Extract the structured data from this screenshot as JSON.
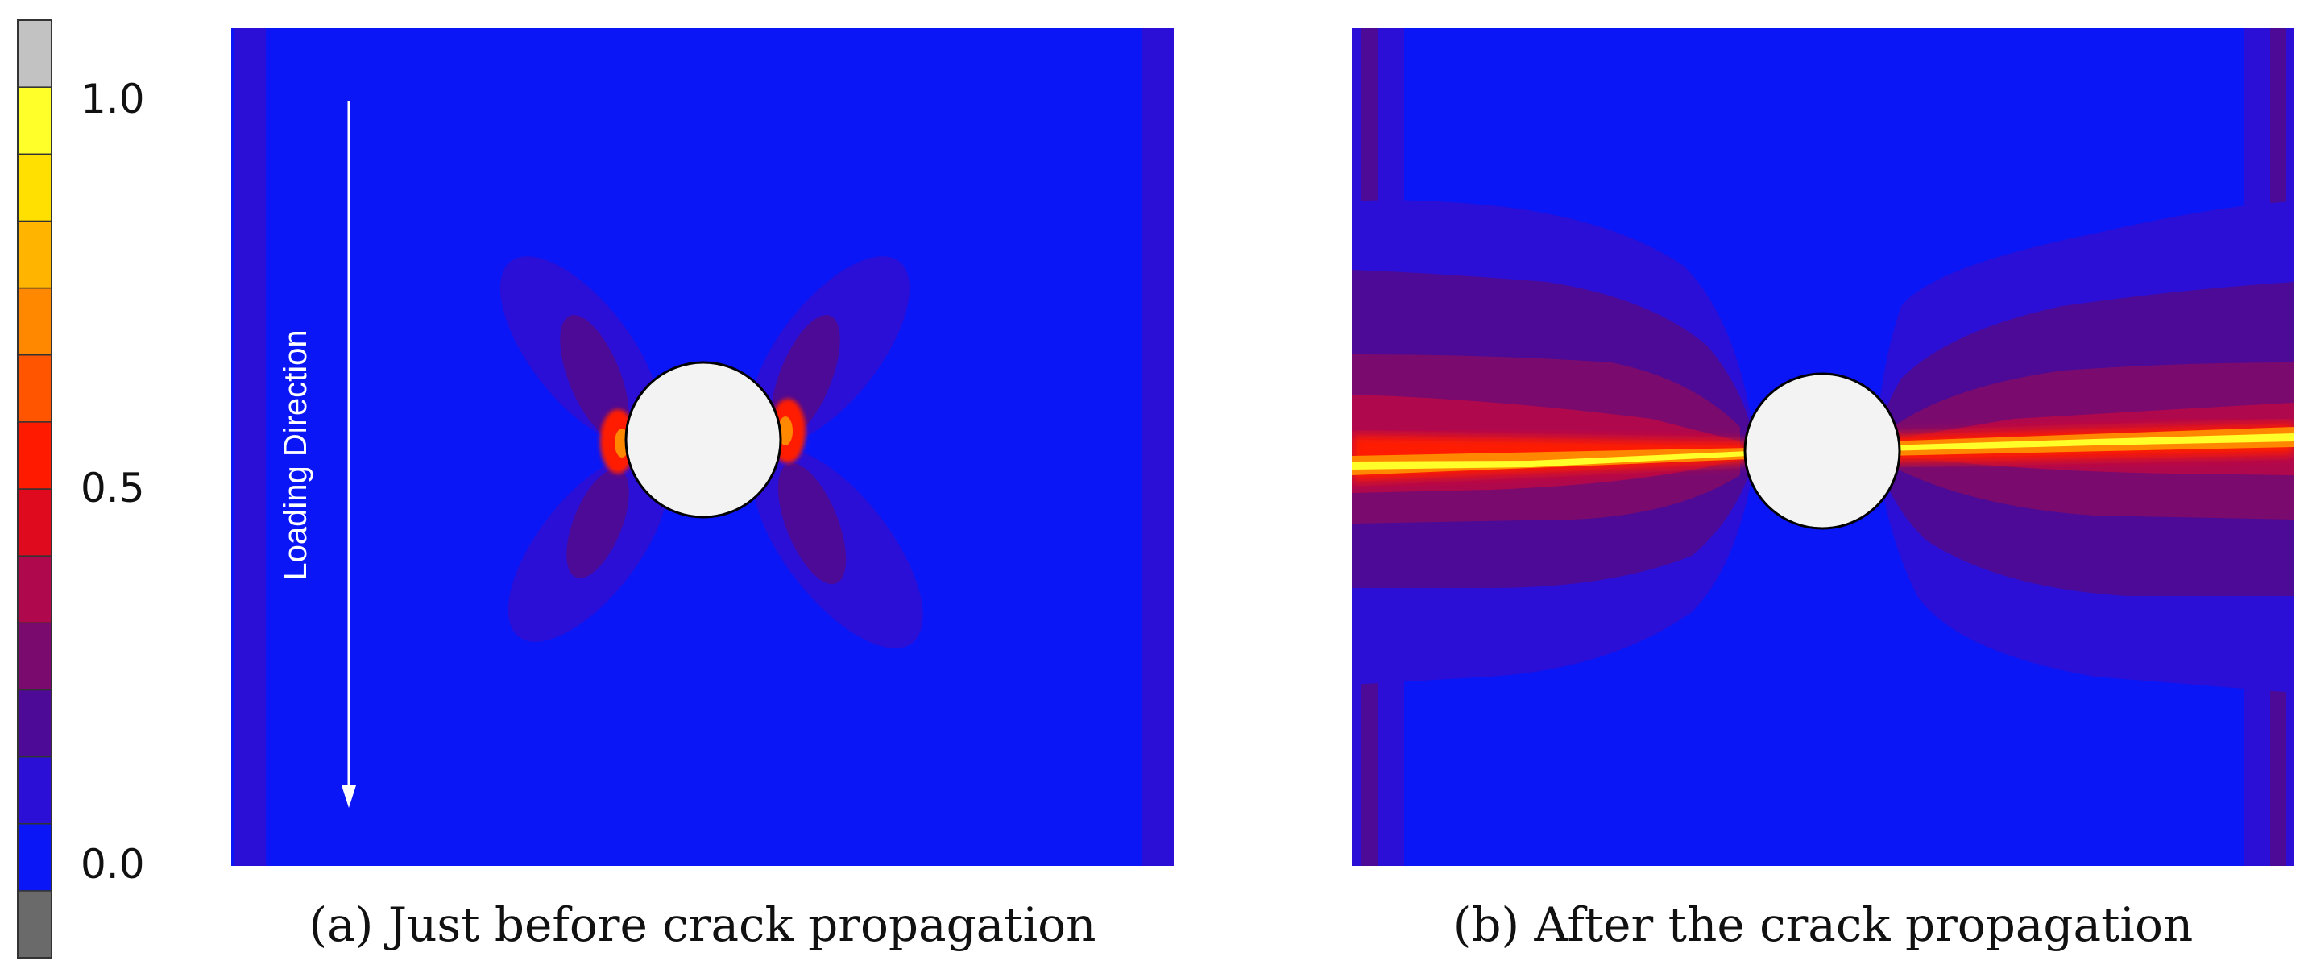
{
  "colorbar": {
    "segments": [
      "#6a6a6a",
      "#0a16f5",
      "#2b0fd6",
      "#4c0a96",
      "#7b0a6e",
      "#b0084c",
      "#df0a1e",
      "#ff1a00",
      "#ff5500",
      "#ff8800",
      "#ffb400",
      "#ffe000",
      "#ffff2a",
      "#c2c2c2"
    ],
    "ticks": [
      "1.0",
      "0.5",
      "0.0"
    ]
  },
  "panel_a": {
    "caption": "(a) Just before crack propagation",
    "annotation": "Loading Direction"
  },
  "panel_b": {
    "caption": "(b) After the crack propagation"
  },
  "colors": {
    "background_field": "#0a16f5",
    "level1": "#2b0fd6",
    "level2": "#4c0a96",
    "level3": "#7b0a6e",
    "level4": "#b0084c",
    "red": "#ff1a00",
    "orange": "#ff8800",
    "yellow": "#ffff2a",
    "hole": "#f3f3f3"
  }
}
